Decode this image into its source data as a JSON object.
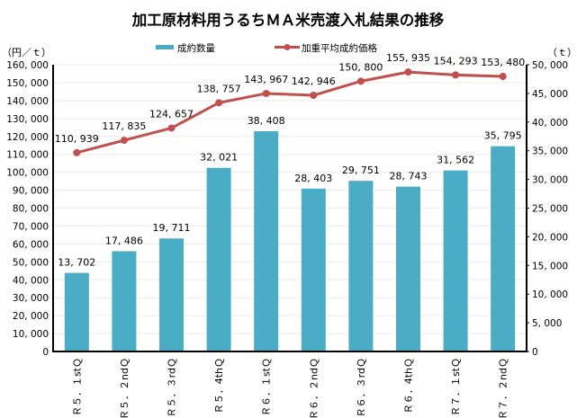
{
  "chart_data": {
    "type": "bar+line",
    "title": "加工原材料用うるちＭＡ米売渡入札結果の推移",
    "categories": [
      "Ｒ５．１stＱ",
      "Ｒ５．２ndＱ",
      "Ｒ５．３rdＱ",
      "Ｒ５．4thＱ",
      "Ｒ６．１stＱ",
      "Ｒ６．２ndＱ",
      "Ｒ６．３rdＱ",
      "Ｒ６．4thＱ",
      "Ｒ７．１stＱ",
      "Ｒ７．２ndＱ"
    ],
    "series": [
      {
        "name": "成約数量",
        "kind": "bar",
        "axis": "right",
        "color": "#4BACC6",
        "values": [
          13702,
          17486,
          19711,
          32021,
          38408,
          28403,
          29751,
          28743,
          31562,
          35795
        ],
        "labels": [
          "13, 702",
          "17, 486",
          "19, 711",
          "32, 021",
          "38, 408",
          "28, 403",
          "29, 751",
          "28, 743",
          "31, 562",
          "35, 795"
        ]
      },
      {
        "name": "加重平均成約価格",
        "kind": "line",
        "axis": "left",
        "color": "#C0504D",
        "values": [
          110939,
          117835,
          124657,
          138757,
          143967,
          142946,
          150800,
          155935,
          154293,
          153480
        ],
        "labels": [
          "110, 939",
          "117, 835",
          "124, 657",
          "138, 757",
          "143, 967",
          "142, 946",
          "150, 800",
          "155, 935",
          "154, 293",
          "153, 480"
        ]
      }
    ],
    "left_axis": {
      "unit_label": "（円／ｔ）",
      "ylim": [
        0,
        160000
      ],
      "step": 10000,
      "tick_labels": [
        "0",
        "10, 000",
        "20, 000",
        "30, 000",
        "40, 000",
        "50, 000",
        "60, 000",
        "70, 000",
        "80, 000",
        "90, 000",
        "100, 000",
        "110, 000",
        "120, 000",
        "130, 000",
        "140, 000",
        "150, 000",
        "160, 000"
      ]
    },
    "right_axis": {
      "unit_label": "（ｔ）",
      "ylim": [
        0,
        50000
      ],
      "step": 5000,
      "tick_labels": [
        "0",
        "5, 000",
        "10, 000",
        "15, 000",
        "20, 000",
        "25, 000",
        "30, 000",
        "35, 000",
        "40, 000",
        "45, 000",
        "50, 000"
      ]
    },
    "grid": true,
    "grid_color": "#EEEBE0",
    "legend_position": "top-center"
  }
}
